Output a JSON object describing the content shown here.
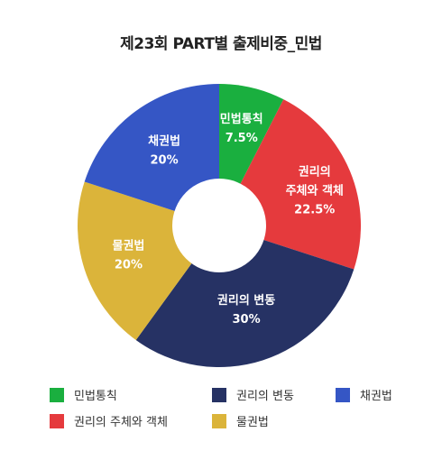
{
  "chart_data": {
    "type": "pie",
    "donut": true,
    "title": "제23회 PART별 출제비중_민법",
    "slices": [
      {
        "label": "민법통칙",
        "value": 7.5,
        "value_label": "7.5%",
        "color": "#1aaf3f"
      },
      {
        "label": "권리의 주체와 객체",
        "value": 22.5,
        "value_label": "22.5%",
        "color": "#e53a3d"
      },
      {
        "label": "권리의 변동",
        "value": 30,
        "value_label": "30%",
        "color": "#263264"
      },
      {
        "label": "물권법",
        "value": 20,
        "value_label": "20%",
        "color": "#dbb43a"
      },
      {
        "label": "채권법",
        "value": 20,
        "value_label": "20%",
        "color": "#3556c5"
      }
    ],
    "legend": {
      "placement": "bottom",
      "order": [
        0,
        2,
        4,
        1,
        3
      ]
    }
  }
}
